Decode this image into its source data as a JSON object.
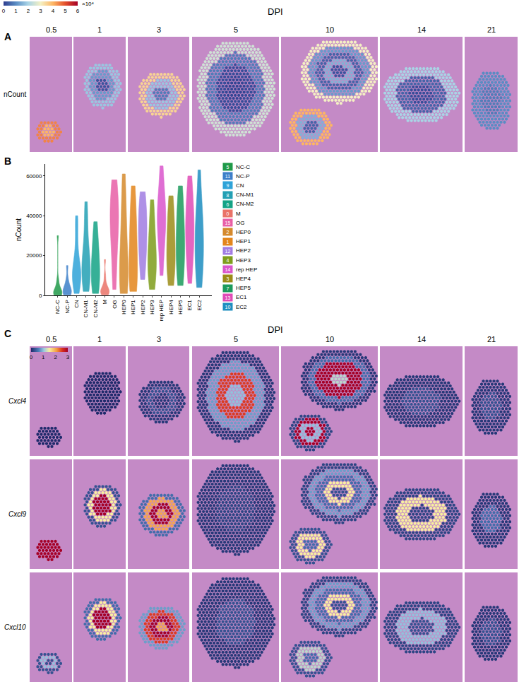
{
  "chart_data": [
    {
      "type": "spatial",
      "panel": "A",
      "title": "DPI",
      "categories": [
        "0.5",
        "1",
        "3",
        "5",
        "10",
        "14",
        "21"
      ],
      "rows": [
        {
          "name": "nCount",
          "regions": [
            [
              [
                45000,
                40000
              ]
            ],
            [
              [
                18000,
                12000,
                3000
              ]
            ],
            [
              [
                35000,
                18000,
                8000
              ]
            ],
            [
              [
                25000,
                8000,
                2000,
                1000
              ]
            ],
            [
              [
                30000,
                12000,
                5000,
                15000,
                3000
              ],
              [
                40000,
                15000,
                5000
              ]
            ],
            [
              [
                20000,
                5000,
                2000
              ]
            ],
            [
              [
                10000,
                8000
              ]
            ]
          ]
        }
      ],
      "colorbar": {
        "range": [
          0,
          60000
        ],
        "exponent": "×10⁴",
        "ticks": [
          {
            "value": 0,
            "label": "0"
          },
          {
            "value": 10000,
            "label": "1"
          },
          {
            "value": 20000,
            "label": "2"
          },
          {
            "value": 30000,
            "label": "3"
          },
          {
            "value": 40000,
            "label": "4"
          },
          {
            "value": 50000,
            "label": "5"
          },
          {
            "value": 60000,
            "label": "6"
          }
        ]
      }
    },
    {
      "type": "violin",
      "panel": "B",
      "ylabel": "nCount",
      "ylim": [
        0,
        66000
      ],
      "yticks": [
        0,
        20000,
        40000,
        60000
      ],
      "series": [
        {
          "name": "NC-C",
          "id": "5",
          "color": "#1f9a48",
          "values": [
            200,
            500,
            800,
            1000,
            1500,
            2000,
            3000,
            5000,
            8000,
            30000
          ]
        },
        {
          "name": "NC-P",
          "id": "11",
          "color": "#3d7fc9",
          "values": [
            300,
            800,
            1200,
            1800,
            2500,
            3500,
            5000,
            8000,
            15000
          ]
        },
        {
          "name": "CN",
          "id": "9",
          "color": "#2ea3d8",
          "values": [
            1000,
            4000,
            7000,
            9000,
            10000,
            11000,
            12000,
            14000,
            18000,
            25000,
            35000,
            40000
          ]
        },
        {
          "name": "CN-M1",
          "id": "8",
          "color": "#23a0b4",
          "values": [
            2000,
            5000,
            9000,
            11000,
            13000,
            15000,
            18000,
            22000,
            30000,
            40000,
            47000
          ]
        },
        {
          "name": "CN-M2",
          "id": "6",
          "color": "#14a385",
          "values": [
            1000,
            3000,
            6000,
            10000,
            13000,
            16000,
            20000,
            25000,
            30000,
            37000
          ]
        },
        {
          "name": "M",
          "id": "0",
          "color": "#ea7368",
          "values": [
            300,
            800,
            1200,
            1600,
            2000,
            2500,
            3000,
            4000,
            6000,
            10000,
            18000
          ]
        },
        {
          "name": "OG",
          "id": "15",
          "color": "#e85fa6",
          "values": [
            3000,
            10000,
            20000,
            28000,
            33000,
            37000,
            40000,
            43000,
            48000,
            55000,
            58000
          ]
        },
        {
          "name": "HEP0",
          "id": "2",
          "color": "#d58a2c",
          "values": [
            1000,
            3000,
            5000,
            8000,
            12000,
            18000,
            25000,
            32000,
            40000,
            50000,
            61000
          ]
        },
        {
          "name": "HEP1",
          "id": "1",
          "color": "#e3861c",
          "values": [
            2000,
            5000,
            8000,
            12000,
            18000,
            25000,
            32000,
            38000,
            45000,
            55000
          ]
        },
        {
          "name": "HEP2",
          "id": "12",
          "color": "#a17de2",
          "values": [
            8000,
            15000,
            20000,
            25000,
            30000,
            34000,
            38000,
            42000,
            48000,
            52000
          ]
        },
        {
          "name": "HEP3",
          "id": "4",
          "color": "#7e9d1c",
          "values": [
            3000,
            8000,
            12000,
            15000,
            18000,
            22000,
            27000,
            33000,
            40000,
            48000
          ]
        },
        {
          "name": "rep HEP",
          "id": "14",
          "color": "#da55cc",
          "values": [
            10000,
            20000,
            28000,
            33000,
            37000,
            40000,
            43000,
            48000,
            55000,
            65000
          ]
        },
        {
          "name": "HEP4",
          "id": "3",
          "color": "#9c8c18",
          "values": [
            5000,
            10000,
            14000,
            18000,
            22000,
            27000,
            32000,
            38000,
            44000,
            50000
          ]
        },
        {
          "name": "HEP5",
          "id": "7",
          "color": "#1c9b5c",
          "values": [
            5000,
            10000,
            15000,
            20000,
            25000,
            30000,
            35000,
            40000,
            48000,
            55000
          ]
        },
        {
          "name": "EC1",
          "id": "13",
          "color": "#e04bb6",
          "values": [
            6000,
            15000,
            22000,
            27000,
            31000,
            35000,
            40000,
            45000,
            52000,
            60000
          ]
        },
        {
          "name": "EC2",
          "id": "10",
          "color": "#1d8ec0",
          "values": [
            4000,
            10000,
            15000,
            20000,
            25000,
            30000,
            35000,
            40000,
            47000,
            63000
          ]
        }
      ]
    },
    {
      "type": "spatial",
      "panel": "C",
      "title": "DPI",
      "categories": [
        "0.5",
        "1",
        "3",
        "5",
        "10",
        "14",
        "21"
      ],
      "rows": [
        {
          "name": "Cxcl4",
          "regions": [
            [
              [
                0
              ]
            ],
            [
              [
                0
              ]
            ],
            [
              [
                0.1,
                0.3,
                0.1
              ]
            ],
            [
              [
                0.1,
                0.8,
                2.5,
                1.0
              ]
            ],
            [
              [
                0.1,
                0.5,
                3,
                3,
                1.2
              ],
              [
                0.2,
                3,
                1,
                3
              ]
            ],
            [
              [
                0.1,
                0.3
              ]
            ],
            [
              [
                0.1,
                0.3
              ]
            ]
          ]
        },
        {
          "name": "Cxcl9",
          "regions": [
            [
              [
                3
              ]
            ],
            [
              [
                0.3,
                1.5,
                3,
                3
              ]
            ],
            [
              [
                0.5,
                2,
                3,
                2
              ]
            ],
            [
              [
                0.1,
                0.2
              ]
            ],
            [
              [
                0.2,
                0.8,
                0.5,
                1.5,
                0.3
              ],
              [
                0.3,
                1.5,
                0.5
              ]
            ],
            [
              [
                0.2,
                1.5,
                0.2
              ]
            ],
            [
              [
                0.1,
                0.5
              ]
            ]
          ]
        },
        {
          "name": "Cxcl10",
          "regions": [
            [
              [
                0.3,
                1,
                0.3
              ]
            ],
            [
              [
                0.5,
                1.5,
                3,
                3
              ]
            ],
            [
              [
                0.8,
                2.5,
                3,
                2
              ]
            ],
            [
              [
                0.1,
                0.3
              ]
            ],
            [
              [
                0.2,
                0.8,
                0.5,
                1.5,
                0.3
              ],
              [
                0.3,
                1.2,
                0.5
              ]
            ],
            [
              [
                0.2,
                1.0,
                0.3
              ]
            ],
            [
              [
                0.1,
                0.3
              ]
            ]
          ]
        }
      ],
      "colorbar": {
        "range": [
          0,
          3
        ],
        "ticks": [
          0,
          1,
          2,
          3
        ]
      }
    }
  ]
}
